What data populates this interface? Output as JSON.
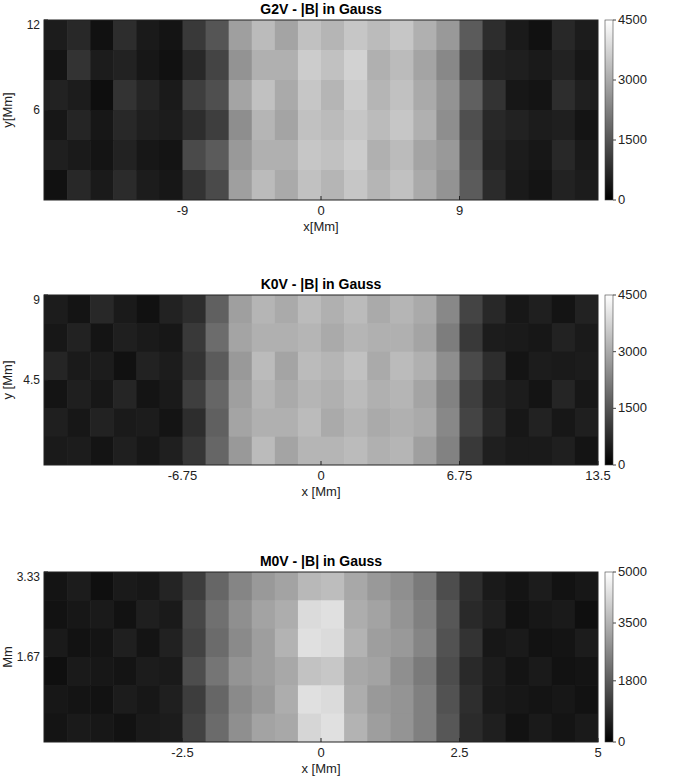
{
  "chart_data": [
    {
      "type": "heatmap",
      "title": "G2V - |B| in Gauss",
      "xlabel": "x[Mm]",
      "ylabel": "y[Mm]",
      "xlim": [
        -18,
        18
      ],
      "xticks": [
        -9,
        0,
        9
      ],
      "ylim": [
        0,
        12
      ],
      "yticks": [
        6,
        12
      ],
      "colorbar_range": [
        0,
        4500
      ],
      "colorbar_ticks": [
        0,
        1500,
        3000,
        4500
      ],
      "cells": [
        [
          500,
          700,
          300,
          800,
          450,
          350,
          1000,
          1500,
          2800,
          3300,
          2900,
          3400,
          3200,
          3500,
          3300,
          3500,
          3100,
          2700,
          1600,
          800,
          450,
          300,
          700,
          500
        ],
        [
          350,
          900,
          500,
          600,
          400,
          300,
          700,
          1200,
          2600,
          3100,
          3100,
          3600,
          3400,
          3700,
          3100,
          3300,
          2900,
          2400,
          1300,
          600,
          550,
          450,
          600,
          400
        ],
        [
          600,
          500,
          250,
          900,
          650,
          450,
          1100,
          1400,
          2900,
          3400,
          3000,
          3500,
          3200,
          3600,
          3200,
          3400,
          3000,
          2600,
          1700,
          900,
          400,
          350,
          800,
          550
        ],
        [
          400,
          650,
          400,
          700,
          550,
          500,
          800,
          1100,
          2500,
          3200,
          2900,
          3400,
          3300,
          3500,
          3300,
          3500,
          3100,
          2500,
          1400,
          700,
          600,
          500,
          550,
          350
        ],
        [
          550,
          450,
          350,
          600,
          400,
          350,
          1300,
          1600,
          2700,
          3100,
          3100,
          3500,
          3400,
          3600,
          3100,
          3300,
          2900,
          2700,
          1500,
          650,
          500,
          400,
          700,
          450
        ],
        [
          300,
          700,
          450,
          750,
          500,
          400,
          900,
          1300,
          2800,
          3300,
          3000,
          3400,
          3200,
          3500,
          3200,
          3400,
          3000,
          2600,
          1600,
          750,
          450,
          350,
          600,
          500
        ]
      ]
    },
    {
      "type": "heatmap",
      "title": "K0V - |B| in Gauss",
      "xlabel": "x [Mm]",
      "ylabel": "y [Mm]",
      "xlim": [
        -13.5,
        13.5
      ],
      "xticks": [
        -6.75,
        0,
        6.75,
        13.5
      ],
      "ylim": [
        0,
        9
      ],
      "yticks": [
        4.5,
        9
      ],
      "colorbar_range": [
        0,
        4500
      ],
      "colorbar_ticks": [
        0,
        1500,
        3000,
        4500
      ],
      "cells": [
        [
          500,
          350,
          700,
          450,
          300,
          600,
          800,
          1700,
          2800,
          3200,
          3000,
          3300,
          3100,
          3300,
          3000,
          3200,
          3000,
          2400,
          1200,
          700,
          400,
          550,
          350,
          600
        ],
        [
          400,
          600,
          350,
          550,
          450,
          400,
          1000,
          1900,
          2900,
          3100,
          3100,
          3200,
          3000,
          3200,
          3100,
          3100,
          2900,
          2200,
          1000,
          500,
          450,
          400,
          600,
          450
        ],
        [
          650,
          450,
          500,
          300,
          600,
          500,
          900,
          1600,
          2700,
          3300,
          2900,
          3300,
          3200,
          3400,
          3000,
          3300,
          3100,
          2500,
          1300,
          800,
          350,
          500,
          450,
          500
        ],
        [
          350,
          550,
          400,
          650,
          350,
          450,
          1100,
          1800,
          2800,
          3200,
          3000,
          3200,
          3100,
          3300,
          3100,
          3200,
          2900,
          2300,
          1100,
          600,
          500,
          350,
          650,
          400
        ],
        [
          550,
          400,
          600,
          450,
          500,
          350,
          800,
          1700,
          2900,
          3100,
          3100,
          3300,
          3000,
          3200,
          3000,
          3100,
          3000,
          2400,
          1200,
          700,
          400,
          600,
          400,
          550
        ],
        [
          450,
          500,
          350,
          550,
          400,
          550,
          950,
          1800,
          2700,
          3300,
          2900,
          3200,
          3200,
          3300,
          3100,
          3200,
          2800,
          2300,
          1000,
          550,
          450,
          450,
          550,
          350
        ]
      ]
    },
    {
      "type": "heatmap",
      "title": "M0V - |B| in Gauss",
      "xlabel": "x [Mm]",
      "ylabel": "Mm",
      "xlim": [
        -5,
        5
      ],
      "xticks": [
        -2.5,
        0,
        2.5,
        5
      ],
      "ylim": [
        0,
        3.33
      ],
      "yticks": [
        1.67,
        3.33
      ],
      "colorbar_range": [
        0,
        5000
      ],
      "colorbar_ticks": [
        0,
        1800,
        3500,
        5000
      ],
      "cells": [
        [
          400,
          550,
          300,
          500,
          450,
          700,
          1200,
          2000,
          2600,
          3000,
          3200,
          3600,
          3700,
          3300,
          3000,
          2800,
          2400,
          1500,
          900,
          500,
          400,
          550,
          350,
          450
        ],
        [
          350,
          450,
          500,
          350,
          600,
          500,
          1400,
          2200,
          2800,
          3200,
          3400,
          4300,
          4400,
          3400,
          3200,
          2900,
          2500,
          1700,
          800,
          600,
          350,
          450,
          500,
          300
        ],
        [
          500,
          350,
          400,
          600,
          400,
          650,
          1300,
          2100,
          2700,
          3100,
          3500,
          4400,
          4300,
          3500,
          3100,
          3000,
          2600,
          1600,
          1000,
          450,
          500,
          350,
          400,
          550
        ],
        [
          300,
          500,
          450,
          400,
          550,
          500,
          1500,
          2300,
          2900,
          3100,
          3300,
          3800,
          3900,
          3300,
          3200,
          2800,
          2400,
          1500,
          800,
          550,
          400,
          500,
          350,
          400
        ],
        [
          450,
          400,
          350,
          550,
          450,
          600,
          1200,
          2000,
          2700,
          3000,
          3400,
          4400,
          4300,
          3400,
          3000,
          2900,
          2500,
          1600,
          900,
          500,
          450,
          400,
          450,
          350
        ],
        [
          400,
          500,
          450,
          350,
          500,
          550,
          1300,
          2100,
          2800,
          3200,
          3300,
          4200,
          4400,
          3500,
          3100,
          2900,
          2500,
          1700,
          850,
          600,
          350,
          500,
          400,
          500
        ]
      ]
    }
  ]
}
